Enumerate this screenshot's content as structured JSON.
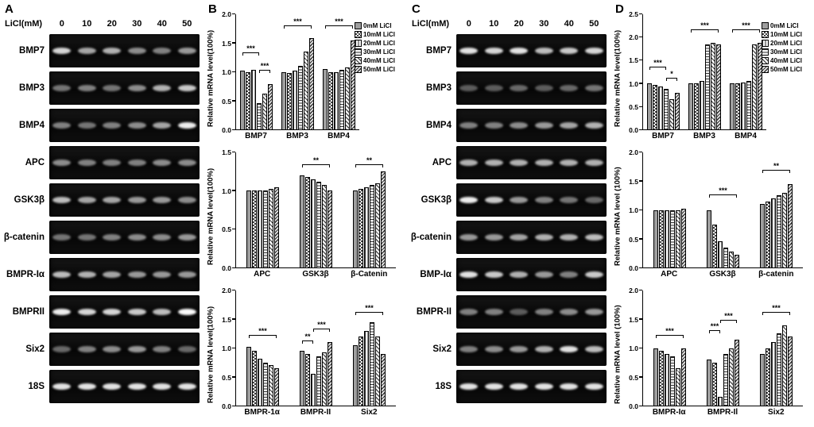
{
  "panels": {
    "A": {
      "label": "A",
      "licl_label": "LiCl(mM)",
      "concentrations": [
        "0",
        "10",
        "20",
        "30",
        "40",
        "50"
      ],
      "rows": [
        {
          "name": "BMP7",
          "bands": [
            0.85,
            0.65,
            0.7,
            0.55,
            0.5,
            0.6
          ]
        },
        {
          "name": "BMP3",
          "bands": [
            0.45,
            0.5,
            0.45,
            0.55,
            0.7,
            0.8
          ]
        },
        {
          "name": "BMP4",
          "bands": [
            0.5,
            0.45,
            0.5,
            0.55,
            0.65,
            0.95
          ]
        },
        {
          "name": "APC",
          "bands": [
            0.55,
            0.5,
            0.5,
            0.5,
            0.55,
            0.55
          ]
        },
        {
          "name": "GSK3β",
          "bands": [
            0.75,
            0.65,
            0.65,
            0.6,
            0.6,
            0.55
          ]
        },
        {
          "name": "β-catenin",
          "bands": [
            0.45,
            0.45,
            0.5,
            0.55,
            0.55,
            0.6
          ]
        },
        {
          "name": "BMPR-Iα",
          "bands": [
            0.75,
            0.7,
            0.65,
            0.6,
            0.6,
            0.6
          ]
        },
        {
          "name": "BMPRII",
          "bands": [
            0.95,
            0.85,
            0.85,
            0.8,
            0.75,
            1.0
          ]
        },
        {
          "name": "Six2",
          "bands": [
            0.4,
            0.5,
            0.55,
            0.6,
            0.5,
            0.4
          ]
        },
        {
          "name": "18S",
          "bands": [
            0.9,
            0.9,
            0.9,
            0.9,
            0.9,
            0.9
          ]
        }
      ]
    },
    "B": {
      "label": "B"
    },
    "C": {
      "label": "C",
      "licl_label": "LiCl(mM)",
      "concentrations": [
        "0",
        "10",
        "20",
        "30",
        "40",
        "50"
      ],
      "rows": [
        {
          "name": "BMP7",
          "bands": [
            0.9,
            0.85,
            0.9,
            0.75,
            0.8,
            0.85
          ]
        },
        {
          "name": "BMP3",
          "bands": [
            0.35,
            0.35,
            0.4,
            0.35,
            0.4,
            0.45
          ]
        },
        {
          "name": "BMP4",
          "bands": [
            0.5,
            0.5,
            0.55,
            0.6,
            0.65,
            0.7
          ]
        },
        {
          "name": "APC",
          "bands": [
            0.7,
            0.7,
            0.7,
            0.7,
            0.7,
            0.7
          ]
        },
        {
          "name": "GSK3β",
          "bands": [
            0.95,
            0.8,
            0.6,
            0.5,
            0.45,
            0.4
          ]
        },
        {
          "name": "β-catenin",
          "bands": [
            0.6,
            0.6,
            0.65,
            0.7,
            0.7,
            0.75
          ]
        },
        {
          "name": "BMP-Iα",
          "bands": [
            0.9,
            0.8,
            0.7,
            0.6,
            0.5,
            0.8
          ]
        },
        {
          "name": "BMPR-II",
          "bands": [
            0.5,
            0.5,
            0.35,
            0.5,
            0.55,
            0.6
          ]
        },
        {
          "name": "Six2",
          "bands": [
            0.5,
            0.55,
            0.6,
            0.7,
            0.9,
            0.75
          ]
        },
        {
          "name": "18S",
          "bands": [
            0.9,
            0.9,
            0.9,
            0.9,
            0.9,
            0.9
          ]
        }
      ]
    },
    "D": {
      "label": "D"
    }
  },
  "legend": {
    "items": [
      {
        "label": "0mM LiCl",
        "pattern": 0
      },
      {
        "label": "10mM LiCl",
        "pattern": 1
      },
      {
        "label": "20mM LiCl",
        "pattern": 2
      },
      {
        "label": "30mM LiCl",
        "pattern": 3
      },
      {
        "label": "40mM LiCl",
        "pattern": 4
      },
      {
        "label": "50mM LiCl",
        "pattern": 5
      }
    ]
  },
  "chart_data": [
    {
      "panel": "B",
      "slot": 0,
      "type": "bar",
      "ylabel": "Relative mRNA level(100%)",
      "categories": [
        "BMP7",
        "BMP3",
        "BMP4"
      ],
      "ylim": 2.0,
      "yticks": [
        0.0,
        0.5,
        1.0,
        1.5,
        2.0
      ],
      "series": [
        {
          "name": "0mM LiCl",
          "values": [
            1.02,
            1.0,
            1.05
          ]
        },
        {
          "name": "10mM LiCl",
          "values": [
            1.0,
            0.98,
            1.0
          ]
        },
        {
          "name": "20mM LiCl",
          "values": [
            1.03,
            1.02,
            1.0
          ]
        },
        {
          "name": "30mM LiCl",
          "values": [
            0.45,
            1.1,
            1.03
          ]
        },
        {
          "name": "40mM LiCl",
          "values": [
            0.62,
            1.35,
            1.08
          ]
        },
        {
          "name": "50mM LiCl",
          "values": [
            0.78,
            1.58,
            1.55
          ]
        }
      ],
      "annotations": [
        {
          "g": 0,
          "from": 0,
          "to": 3,
          "y": 1.32,
          "text": "***"
        },
        {
          "g": 0,
          "from": 3,
          "to": 5,
          "y": 1.02,
          "text": "***"
        },
        {
          "g": 1,
          "from": 0,
          "to": 5,
          "y": 1.8,
          "text": "***"
        },
        {
          "g": 2,
          "from": 0,
          "to": 5,
          "y": 1.8,
          "text": "***"
        }
      ]
    },
    {
      "panel": "B",
      "slot": 1,
      "type": "bar",
      "ylabel": "Relative mRNA level(100%)",
      "categories": [
        "APC",
        "GSK3β",
        "β-Catenin"
      ],
      "ylim": 1.5,
      "yticks": [
        0.0,
        0.5,
        1.0,
        1.5
      ],
      "series": [
        {
          "name": "0mM LiCl",
          "values": [
            1.0,
            1.2,
            1.0
          ]
        },
        {
          "name": "10mM LiCl",
          "values": [
            1.0,
            1.18,
            1.02
          ]
        },
        {
          "name": "20mM LiCl",
          "values": [
            1.0,
            1.15,
            1.05
          ]
        },
        {
          "name": "30mM LiCl",
          "values": [
            1.0,
            1.12,
            1.08
          ]
        },
        {
          "name": "40mM LiCl",
          "values": [
            1.02,
            1.08,
            1.1
          ]
        },
        {
          "name": "50mM LiCl",
          "values": [
            1.05,
            1.0,
            1.25
          ]
        }
      ],
      "annotations": [
        {
          "g": 1,
          "from": 0,
          "to": 5,
          "y": 1.33,
          "text": "**"
        },
        {
          "g": 2,
          "from": 0,
          "to": 5,
          "y": 1.33,
          "text": "**"
        }
      ]
    },
    {
      "panel": "B",
      "slot": 2,
      "type": "bar",
      "ylabel": "Relative mRNA level(100%)",
      "categories": [
        "BMPR-1α",
        "BMPR-II",
        "Six2"
      ],
      "ylim": 2.0,
      "yticks": [
        0.0,
        0.5,
        1.0,
        1.5,
        2.0
      ],
      "series": [
        {
          "name": "0mM LiCl",
          "values": [
            1.02,
            0.95,
            1.05
          ]
        },
        {
          "name": "10mM LiCl",
          "values": [
            0.95,
            0.9,
            1.2
          ]
        },
        {
          "name": "20mM LiCl",
          "values": [
            0.82,
            0.55,
            1.3
          ]
        },
        {
          "name": "30mM LiCl",
          "values": [
            0.75,
            0.85,
            1.45
          ]
        },
        {
          "name": "40mM LiCl",
          "values": [
            0.7,
            0.92,
            1.2
          ]
        },
        {
          "name": "50mM LiCl",
          "values": [
            0.65,
            1.1,
            0.9
          ]
        }
      ],
      "annotations": [
        {
          "g": 0,
          "from": 0,
          "to": 5,
          "y": 1.22,
          "text": "***"
        },
        {
          "g": 1,
          "from": 0,
          "to": 2,
          "y": 1.12,
          "text": "**"
        },
        {
          "g": 1,
          "from": 2,
          "to": 5,
          "y": 1.32,
          "text": "***"
        },
        {
          "g": 2,
          "from": 0,
          "to": 5,
          "y": 1.62,
          "text": "***"
        }
      ]
    },
    {
      "panel": "D",
      "slot": 0,
      "type": "bar",
      "ylabel": "Relative mRNA level(100%)",
      "categories": [
        "BMP7",
        "BMP3",
        "BMP4"
      ],
      "ylim": 2.5,
      "yticks": [
        0.0,
        0.5,
        1.0,
        1.5,
        2.0,
        2.5
      ],
      "series": [
        {
          "name": "0mM LiCl",
          "values": [
            1.0,
            1.0,
            1.0
          ]
        },
        {
          "name": "10mM LiCl",
          "values": [
            0.97,
            1.0,
            1.0
          ]
        },
        {
          "name": "20mM LiCl",
          "values": [
            0.93,
            1.05,
            1.02
          ]
        },
        {
          "name": "30mM LiCl",
          "values": [
            0.88,
            1.85,
            1.05
          ]
        },
        {
          "name": "40mM LiCl",
          "values": [
            0.65,
            1.88,
            1.85
          ]
        },
        {
          "name": "50mM LiCl",
          "values": [
            0.8,
            1.85,
            1.88
          ]
        }
      ],
      "annotations": [
        {
          "g": 0,
          "from": 0,
          "to": 3,
          "y": 1.35,
          "text": "***"
        },
        {
          "g": 0,
          "from": 3,
          "to": 5,
          "y": 1.1,
          "text": "*"
        },
        {
          "g": 1,
          "from": 0,
          "to": 5,
          "y": 2.15,
          "text": "***"
        },
        {
          "g": 2,
          "from": 0,
          "to": 5,
          "y": 2.15,
          "text": "***"
        }
      ]
    },
    {
      "panel": "D",
      "slot": 1,
      "type": "bar",
      "ylabel": "Relative mRNA level (100%)",
      "categories": [
        "APC",
        "GSK3β",
        "β-catenin"
      ],
      "ylim": 2.0,
      "yticks": [
        0.0,
        0.5,
        1.0,
        1.5,
        2.0
      ],
      "series": [
        {
          "name": "0mM LiCl",
          "values": [
            1.0,
            1.0,
            1.1
          ]
        },
        {
          "name": "10mM LiCl",
          "values": [
            1.0,
            0.75,
            1.15
          ]
        },
        {
          "name": "20mM LiCl",
          "values": [
            1.0,
            0.45,
            1.2
          ]
        },
        {
          "name": "30mM LiCl",
          "values": [
            1.0,
            0.35,
            1.25
          ]
        },
        {
          "name": "40mM LiCl",
          "values": [
            1.0,
            0.28,
            1.3
          ]
        },
        {
          "name": "50mM LiCl",
          "values": [
            1.02,
            0.22,
            1.45
          ]
        }
      ],
      "annotations": [
        {
          "g": 1,
          "from": 0,
          "to": 5,
          "y": 1.25,
          "text": "***"
        },
        {
          "g": 2,
          "from": 0,
          "to": 5,
          "y": 1.68,
          "text": "**"
        }
      ]
    },
    {
      "panel": "D",
      "slot": 2,
      "type": "bar",
      "ylabel": "Relative mRNA level (100%)",
      "categories": [
        "BMPR-Iα",
        "BMPR-Il",
        "Six2"
      ],
      "ylim": 2.0,
      "yticks": [
        0.0,
        0.5,
        1.0,
        1.5,
        2.0
      ],
      "series": [
        {
          "name": "0mM LiCl",
          "values": [
            1.0,
            0.8,
            0.9
          ]
        },
        {
          "name": "10mM LiCl",
          "values": [
            0.95,
            0.75,
            1.0
          ]
        },
        {
          "name": "20mM LiCl",
          "values": [
            0.9,
            0.15,
            1.1
          ]
        },
        {
          "name": "30mM LiCl",
          "values": [
            0.85,
            0.9,
            1.25
          ]
        },
        {
          "name": "40mM LiCl",
          "values": [
            0.65,
            1.0,
            1.4
          ]
        },
        {
          "name": "50mM LiCl",
          "values": [
            1.0,
            1.15,
            1.2
          ]
        }
      ],
      "annotations": [
        {
          "g": 0,
          "from": 0,
          "to": 5,
          "y": 1.22,
          "text": "***"
        },
        {
          "g": 1,
          "from": 0,
          "to": 2,
          "y": 1.3,
          "text": "***"
        },
        {
          "g": 1,
          "from": 2,
          "to": 5,
          "y": 1.48,
          "text": "***"
        },
        {
          "g": 2,
          "from": 0,
          "to": 5,
          "y": 1.62,
          "text": "***"
        }
      ]
    }
  ]
}
